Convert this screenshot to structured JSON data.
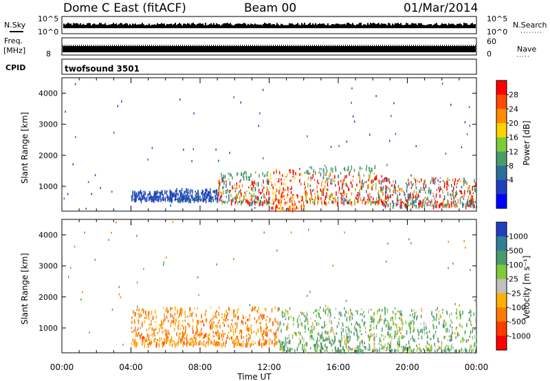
{
  "header": {
    "station": "Dome C East (fitACF)",
    "beam": "Beam 00",
    "date": "01/Mar/2014"
  },
  "top_panels": {
    "nsky_label": "N.Sky",
    "nsky_ticks": [
      "10^5",
      "10^0"
    ],
    "nsearch_label": "N.Search",
    "freq_label_line1": "Freq.",
    "freq_label_line2": "[MHz]",
    "freq_tick": "8",
    "nave_label": "Nave",
    "nave_ticks": [
      "60",
      "0"
    ],
    "cpid_label": "CPID",
    "cpid_value": "twofsound 3501"
  },
  "chart_data": [
    {
      "type": "heatmap",
      "panel": "power",
      "xlabel": "",
      "ylabel": "Slant Range [km]",
      "xlim": [
        0,
        24
      ],
      "ylim": [
        200,
        4500
      ],
      "yticks": [
        1000,
        2000,
        3000,
        4000
      ],
      "colorbar": {
        "label": "Power [dB]",
        "ticks": [
          "28",
          "24",
          "20",
          "16",
          "12",
          "8",
          "4"
        ],
        "colors": [
          "#ff0000",
          "#ff4a00",
          "#ff8c00",
          "#ffd200",
          "#7ecb3a",
          "#4a9a6a",
          "#2c6e9a",
          "#1f3fc0",
          "#0000ff"
        ]
      },
      "scatter_regions": [
        {
          "t_start": 4.0,
          "t_end": 6.5,
          "range_min": 600,
          "range_max": 900,
          "level": "low"
        },
        {
          "t_start": 6.5,
          "t_end": 9.0,
          "range_min": 600,
          "range_max": 950,
          "level": "low"
        },
        {
          "t_start": 9.0,
          "t_end": 12.0,
          "range_min": 500,
          "range_max": 1500,
          "level": "mid-high"
        },
        {
          "t_start": 12.0,
          "t_end": 14.0,
          "range_min": 300,
          "range_max": 1600,
          "level": "high"
        },
        {
          "t_start": 14.0,
          "t_end": 18.5,
          "range_min": 500,
          "range_max": 1700,
          "level": "mid-high"
        },
        {
          "t_start": 18.5,
          "t_end": 24.0,
          "range_min": 400,
          "range_max": 1300,
          "level": "mid"
        }
      ]
    },
    {
      "type": "heatmap",
      "panel": "velocity",
      "xlabel": "Time UT",
      "ylabel": "Slant Range [km]",
      "xlim": [
        0,
        24
      ],
      "ylim": [
        200,
        4500
      ],
      "xticks": [
        "00:00",
        "04:00",
        "08:00",
        "12:00",
        "16:00",
        "20:00",
        "00:00"
      ],
      "yticks": [
        1000,
        2000,
        3000,
        4000
      ],
      "colorbar": {
        "label": "Velocity [m s⁻¹]",
        "ticks": [
          "1000",
          "500",
          "100",
          "25",
          "-25",
          "-100",
          "-500",
          "-1000"
        ],
        "colors": [
          "#1f3fc0",
          "#2f7f9a",
          "#4a9a6a",
          "#7ecb3a",
          "#c0c0c0",
          "#ffb000",
          "#ff7a00",
          "#ff3a00",
          "#ff0000"
        ]
      },
      "scatter_regions": [
        {
          "t_start": 4.0,
          "t_end": 12.5,
          "range_min": 500,
          "range_max": 1700,
          "sign": "negative"
        },
        {
          "t_start": 12.5,
          "t_end": 24.0,
          "range_min": 300,
          "range_max": 1700,
          "sign": "positive"
        }
      ]
    }
  ]
}
